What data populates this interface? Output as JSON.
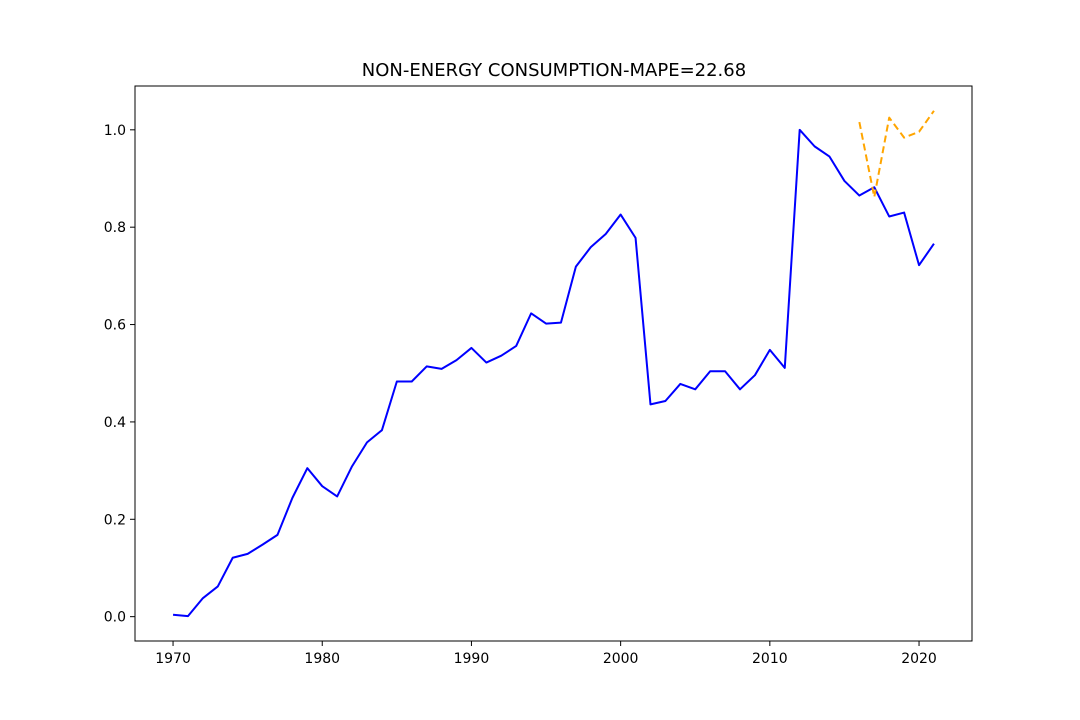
{
  "chart_data": {
    "type": "line",
    "title": "NON-ENERGY CONSUMPTION-MAPE=22.68",
    "xlabel": "",
    "ylabel": "",
    "xlim": [
      1967.45,
      2023.55
    ],
    "ylim": [
      -0.05,
      1.09
    ],
    "xticks": [
      1970,
      1980,
      1990,
      2000,
      2010,
      2020
    ],
    "xtick_labels": [
      "1970",
      "1980",
      "1990",
      "2000",
      "2010",
      "2020"
    ],
    "yticks": [
      0.0,
      0.2,
      0.4,
      0.6,
      0.8,
      1.0
    ],
    "ytick_labels": [
      "0.0",
      "0.2",
      "0.4",
      "0.6",
      "0.8",
      "1.0"
    ],
    "grid": false,
    "series": [
      {
        "color": "#0000ff",
        "style": "solid",
        "x": [
          1970,
          1971,
          1972,
          1973,
          1974,
          1975,
          1976,
          1977,
          1978,
          1979,
          1980,
          1981,
          1982,
          1983,
          1984,
          1985,
          1986,
          1987,
          1988,
          1989,
          1990,
          1991,
          1992,
          1993,
          1994,
          1995,
          1996,
          1997,
          1998,
          1999,
          2000,
          2001,
          2002,
          2003,
          2004,
          2005,
          2006,
          2007,
          2008,
          2009,
          2010,
          2011,
          2012,
          2013,
          2014,
          2015,
          2016,
          2017,
          2018,
          2019,
          2020,
          2021
        ],
        "values": [
          0.004,
          0.001,
          0.038,
          0.062,
          0.121,
          0.129,
          0.148,
          0.168,
          0.244,
          0.305,
          0.268,
          0.247,
          0.309,
          0.358,
          0.383,
          0.483,
          0.483,
          0.514,
          0.509,
          0.527,
          0.552,
          0.522,
          0.536,
          0.556,
          0.623,
          0.602,
          0.604,
          0.719,
          0.759,
          0.786,
          0.826,
          0.778,
          0.436,
          0.443,
          0.478,
          0.467,
          0.504,
          0.504,
          0.467,
          0.496,
          0.548,
          0.511,
          1.0,
          0.966,
          0.945,
          0.895,
          0.865,
          0.882,
          0.822,
          0.83,
          0.722,
          0.766
        ]
      },
      {
        "color": "#ffa500",
        "style": "dashed",
        "x": [
          2016,
          2017,
          2018,
          2019,
          2020,
          2021
        ],
        "values": [
          1.016,
          0.862,
          1.025,
          0.984,
          0.996,
          1.039
        ]
      }
    ]
  }
}
